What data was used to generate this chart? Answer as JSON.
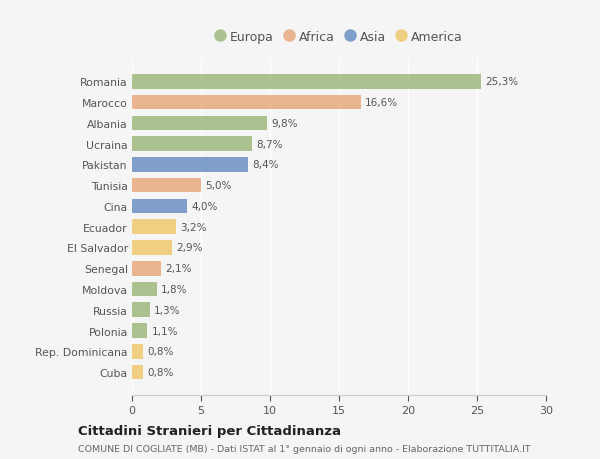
{
  "countries": [
    "Romania",
    "Marocco",
    "Albania",
    "Ucraina",
    "Pakistan",
    "Tunisia",
    "Cina",
    "Ecuador",
    "El Salvador",
    "Senegal",
    "Moldova",
    "Russia",
    "Polonia",
    "Rep. Dominicana",
    "Cuba"
  ],
  "values": [
    25.3,
    16.6,
    9.8,
    8.7,
    8.4,
    5.0,
    4.0,
    3.2,
    2.9,
    2.1,
    1.8,
    1.3,
    1.1,
    0.8,
    0.8
  ],
  "labels": [
    "25,3%",
    "16,6%",
    "9,8%",
    "8,7%",
    "8,4%",
    "5,0%",
    "4,0%",
    "3,2%",
    "2,9%",
    "2,1%",
    "1,8%",
    "1,3%",
    "1,1%",
    "0,8%",
    "0,8%"
  ],
  "continents": [
    "Europa",
    "Africa",
    "Europa",
    "Europa",
    "Asia",
    "Africa",
    "Asia",
    "America",
    "America",
    "Africa",
    "Europa",
    "Europa",
    "Europa",
    "America",
    "America"
  ],
  "colors": {
    "Europa": "#9eba7e",
    "Africa": "#e8a97e",
    "Asia": "#6a8fc4",
    "America": "#f0c96e"
  },
  "legend_order": [
    "Europa",
    "Africa",
    "Asia",
    "America"
  ],
  "title": "Cittadini Stranieri per Cittadinanza",
  "subtitle": "COMUNE DI COGLIATE (MB) - Dati ISTAT al 1° gennaio di ogni anno - Elaborazione TUTTITALIA.IT",
  "xlim": [
    0,
    30
  ],
  "xticks": [
    0,
    5,
    10,
    15,
    20,
    25,
    30
  ],
  "background_color": "#f5f5f5",
  "bar_alpha": 0.85
}
